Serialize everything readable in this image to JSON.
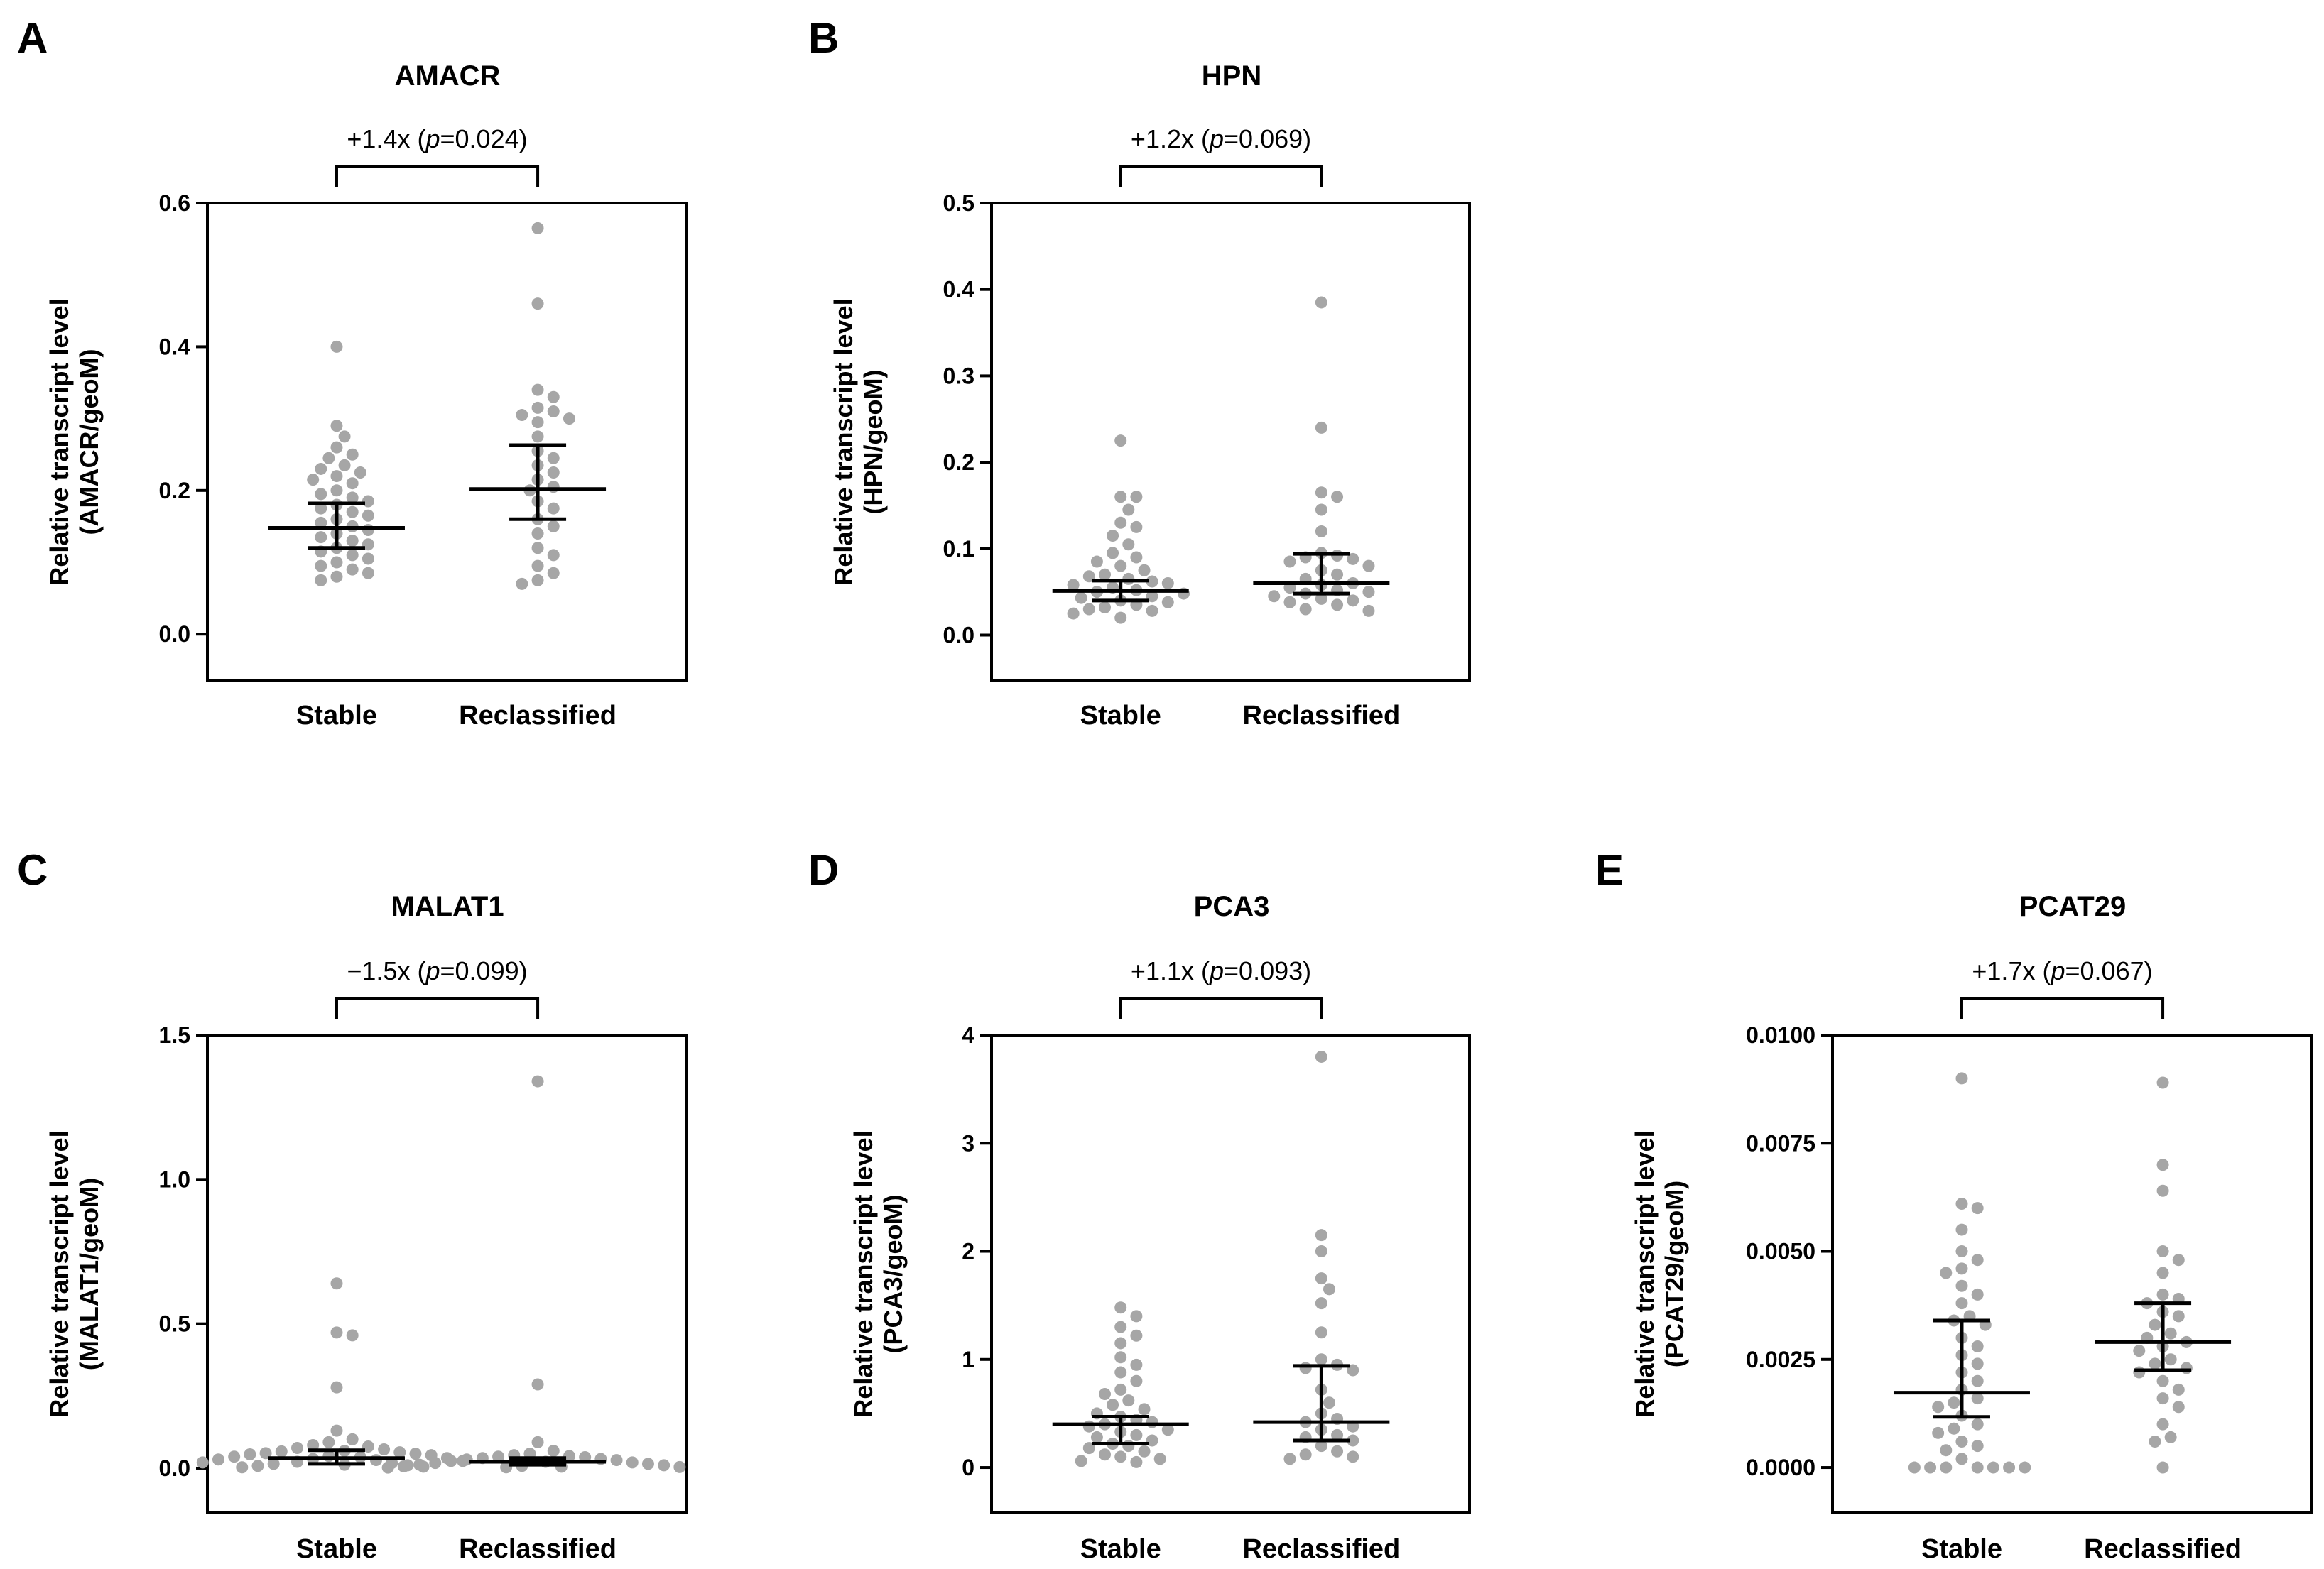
{
  "colors": {
    "point": "#a6a6a6",
    "axis": "#000000",
    "background": "#ffffff"
  },
  "chart_data": [
    {
      "type": "scatter",
      "panel": "A",
      "title": "AMACR",
      "annotation": {
        "fold": "+1.4x",
        "p_label": "p",
        "p_value": "=0.024"
      },
      "ylabel": [
        "Relative transcript level",
        "(AMACR/geoM)"
      ],
      "categories": [
        "Stable",
        "Reclassified"
      ],
      "ylim": [
        -0.065,
        0.6
      ],
      "yticks": [
        0.0,
        0.2,
        0.4,
        0.6
      ],
      "ytick_labels": [
        "0.0",
        "0.2",
        "0.4",
        "0.6"
      ],
      "series": [
        {
          "name": "Stable",
          "median": 0.148,
          "ci": [
            0.12,
            0.182
          ],
          "values": [
            0.4,
            0.29,
            0.275,
            0.26,
            0.25,
            0.245,
            0.235,
            0.23,
            0.225,
            0.22,
            0.215,
            0.21,
            0.2,
            0.195,
            0.19,
            0.185,
            0.18,
            0.175,
            0.17,
            0.165,
            0.16,
            0.155,
            0.15,
            0.145,
            0.14,
            0.135,
            0.13,
            0.125,
            0.12,
            0.115,
            0.11,
            0.105,
            0.1,
            0.095,
            0.09,
            0.085,
            0.08,
            0.075
          ]
        },
        {
          "name": "Reclassified",
          "median": 0.202,
          "ci": [
            0.16,
            0.263
          ],
          "values": [
            0.565,
            0.46,
            0.34,
            0.33,
            0.315,
            0.31,
            0.305,
            0.3,
            0.295,
            0.275,
            0.255,
            0.245,
            0.235,
            0.225,
            0.215,
            0.205,
            0.2,
            0.185,
            0.175,
            0.16,
            0.15,
            0.14,
            0.12,
            0.11,
            0.095,
            0.085,
            0.075,
            0.07
          ]
        }
      ]
    },
    {
      "type": "scatter",
      "panel": "B",
      "title": "HPN",
      "annotation": {
        "fold": "+1.2x",
        "p_label": "p",
        "p_value": "=0.069"
      },
      "ylabel": [
        "Relative transcript level",
        "(HPN/geoM)"
      ],
      "categories": [
        "Stable",
        "Reclassified"
      ],
      "ylim": [
        -0.053,
        0.5
      ],
      "yticks": [
        0.0,
        0.1,
        0.2,
        0.3,
        0.4,
        0.5
      ],
      "ytick_labels": [
        "0.0",
        "0.1",
        "0.2",
        "0.3",
        "0.4",
        "0.5"
      ],
      "series": [
        {
          "name": "Stable",
          "median": 0.051,
          "ci": [
            0.04,
            0.063
          ],
          "values": [
            0.225,
            0.16,
            0.16,
            0.145,
            0.13,
            0.125,
            0.115,
            0.105,
            0.095,
            0.09,
            0.085,
            0.08,
            0.075,
            0.07,
            0.068,
            0.065,
            0.062,
            0.06,
            0.058,
            0.055,
            0.052,
            0.05,
            0.048,
            0.045,
            0.043,
            0.04,
            0.038,
            0.035,
            0.032,
            0.03,
            0.028,
            0.025,
            0.02
          ]
        },
        {
          "name": "Reclassified",
          "median": 0.06,
          "ci": [
            0.048,
            0.094
          ],
          "values": [
            0.385,
            0.24,
            0.165,
            0.16,
            0.145,
            0.12,
            0.095,
            0.092,
            0.09,
            0.088,
            0.085,
            0.08,
            0.075,
            0.07,
            0.065,
            0.06,
            0.058,
            0.055,
            0.052,
            0.05,
            0.048,
            0.045,
            0.042,
            0.04,
            0.038,
            0.035,
            0.03,
            0.028
          ]
        }
      ]
    },
    {
      "type": "scatter",
      "panel": "C",
      "title": "MALAT1",
      "annotation": {
        "fold": "−1.5x",
        "p_label": "p",
        "p_value": "=0.099"
      },
      "ylabel": [
        "Relative transcript level",
        "(MALAT1/geoM)"
      ],
      "categories": [
        "Stable",
        "Reclassified"
      ],
      "ylim": [
        -0.155,
        1.5
      ],
      "yticks": [
        0.0,
        0.5,
        1.0,
        1.5
      ],
      "ytick_labels": [
        "0.0",
        "0.5",
        "1.0",
        "1.5"
      ],
      "series": [
        {
          "name": "Stable",
          "median": 0.035,
          "ci": [
            0.015,
            0.062
          ],
          "values": [
            0.64,
            0.47,
            0.46,
            0.28,
            0.13,
            0.1,
            0.09,
            0.08,
            0.075,
            0.07,
            0.065,
            0.06,
            0.058,
            0.055,
            0.052,
            0.05,
            0.048,
            0.045,
            0.042,
            0.04,
            0.038,
            0.035,
            0.032,
            0.03,
            0.028,
            0.025,
            0.022,
            0.02,
            0.018,
            0.015,
            0.012,
            0.01,
            0.008,
            0.005,
            0.003
          ]
        },
        {
          "name": "Reclassified",
          "median": 0.022,
          "ci": [
            0.012,
            0.035
          ],
          "values": [
            1.34,
            0.29,
            0.09,
            0.06,
            0.05,
            0.045,
            0.042,
            0.04,
            0.038,
            0.035,
            0.032,
            0.03,
            0.028,
            0.025,
            0.022,
            0.02,
            0.018,
            0.015,
            0.012,
            0.01,
            0.008,
            0.006,
            0.005,
            0.004,
            0.003,
            0.002
          ]
        }
      ]
    },
    {
      "type": "scatter",
      "panel": "D",
      "title": "PCA3",
      "annotation": {
        "fold": "+1.1x",
        "p_label": "p",
        "p_value": "=0.093"
      },
      "ylabel": [
        "Relative transcript level",
        "(PCA3/geoM)"
      ],
      "categories": [
        "Stable",
        "Reclassified"
      ],
      "ylim": [
        -0.42,
        4.0
      ],
      "yticks": [
        0,
        1,
        2,
        3,
        4
      ],
      "ytick_labels": [
        "0",
        "1",
        "2",
        "3",
        "4"
      ],
      "series": [
        {
          "name": "Stable",
          "median": 0.4,
          "ci": [
            0.22,
            0.47
          ],
          "values": [
            1.48,
            1.4,
            1.3,
            1.22,
            1.15,
            1.02,
            0.95,
            0.88,
            0.8,
            0.72,
            0.68,
            0.62,
            0.58,
            0.54,
            0.5,
            0.47,
            0.44,
            0.42,
            0.4,
            0.38,
            0.35,
            0.33,
            0.3,
            0.28,
            0.25,
            0.22,
            0.2,
            0.18,
            0.15,
            0.12,
            0.1,
            0.08,
            0.06,
            0.05
          ]
        },
        {
          "name": "Reclassified",
          "median": 0.42,
          "ci": [
            0.25,
            0.94
          ],
          "values": [
            3.8,
            2.15,
            2.0,
            1.75,
            1.65,
            1.52,
            1.25,
            1.0,
            0.95,
            0.92,
            0.9,
            0.72,
            0.6,
            0.5,
            0.45,
            0.42,
            0.38,
            0.35,
            0.3,
            0.28,
            0.25,
            0.2,
            0.15,
            0.12,
            0.1,
            0.08
          ]
        }
      ]
    },
    {
      "type": "scatter",
      "panel": "E",
      "title": "PCAT29",
      "annotation": {
        "fold": "+1.7x",
        "p_label": "p",
        "p_value": "=0.067"
      },
      "ylabel": [
        "Relative transcript level",
        "(PCAT29/geoM)"
      ],
      "categories": [
        "Stable",
        "Reclassified"
      ],
      "ylim": [
        -0.00105,
        0.01
      ],
      "yticks": [
        0.0,
        0.0025,
        0.005,
        0.0075,
        0.01
      ],
      "ytick_labels": [
        "0.0000",
        "0.0025",
        "0.0050",
        "0.0075",
        "0.0100"
      ],
      "series": [
        {
          "name": "Stable",
          "median": 0.00173,
          "ci": [
            0.00117,
            0.0034
          ],
          "values": [
            0.009,
            0.0061,
            0.006,
            0.0055,
            0.005,
            0.0048,
            0.0046,
            0.0045,
            0.0042,
            0.004,
            0.0038,
            0.0035,
            0.0034,
            0.0033,
            0.003,
            0.0028,
            0.0026,
            0.0024,
            0.0022,
            0.002,
            0.0018,
            0.0016,
            0.0015,
            0.0014,
            0.0012,
            0.001,
            0.0009,
            0.0008,
            0.0006,
            0.0005,
            0.0004,
            0.0002,
            0.0,
            0.0,
            0.0,
            0.0,
            0.0,
            0.0,
            0.0
          ]
        },
        {
          "name": "Reclassified",
          "median": 0.0029,
          "ci": [
            0.00225,
            0.0038
          ],
          "values": [
            0.0089,
            0.007,
            0.0064,
            0.005,
            0.0048,
            0.0045,
            0.004,
            0.0039,
            0.0038,
            0.0036,
            0.0035,
            0.0033,
            0.0031,
            0.003,
            0.0029,
            0.0028,
            0.0027,
            0.0025,
            0.0024,
            0.0023,
            0.0022,
            0.002,
            0.0018,
            0.0016,
            0.0014,
            0.001,
            0.0007,
            0.0006,
            0.0
          ]
        }
      ]
    }
  ]
}
